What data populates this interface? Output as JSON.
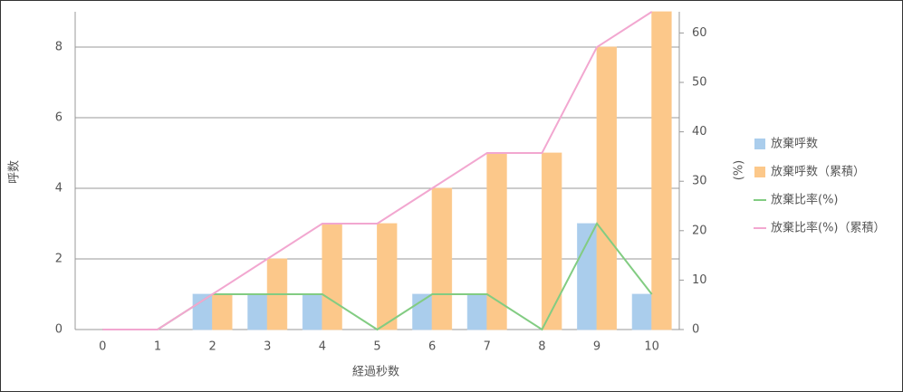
{
  "chart_data": {
    "type": "bar",
    "x_label": "経過秒数",
    "y_label": "呼数",
    "y2_label": "(%)",
    "categories": [
      "0",
      "1",
      "2",
      "3",
      "4",
      "5",
      "6",
      "7",
      "8",
      "9",
      "10"
    ],
    "series": [
      {
        "name": "放棄呼数",
        "type": "bar",
        "color": "#aacdec",
        "values": [
          0,
          0,
          1,
          1,
          1,
          0,
          1,
          1,
          0,
          3,
          1
        ]
      },
      {
        "name": "放棄呼数（累積）",
        "type": "bar",
        "color": "#fcc88a",
        "values": [
          0,
          0,
          1,
          2,
          3,
          3,
          4,
          5,
          5,
          8,
          9
        ]
      },
      {
        "name": "放棄比率(%)",
        "type": "line",
        "axis": "y2",
        "color": "#82cc82",
        "values": [
          0,
          0,
          7.14,
          7.14,
          7.14,
          0,
          7.14,
          7.14,
          0,
          21.43,
          7.14
        ]
      },
      {
        "name": "放棄比率(%)（累積）",
        "type": "line",
        "axis": "y2",
        "color": "#f2a7d0",
        "values": [
          0,
          0,
          7.14,
          14.29,
          21.43,
          21.43,
          28.57,
          35.71,
          35.71,
          57.14,
          64.29
        ]
      }
    ],
    "ylim": [
      0,
      9
    ],
    "yticks": [
      0,
      2,
      4,
      6,
      8
    ],
    "y2lim": [
      0,
      64.29
    ],
    "y2ticks": [
      0,
      10,
      20,
      30,
      40,
      50,
      60
    ],
    "grid": true,
    "legend": "right"
  }
}
